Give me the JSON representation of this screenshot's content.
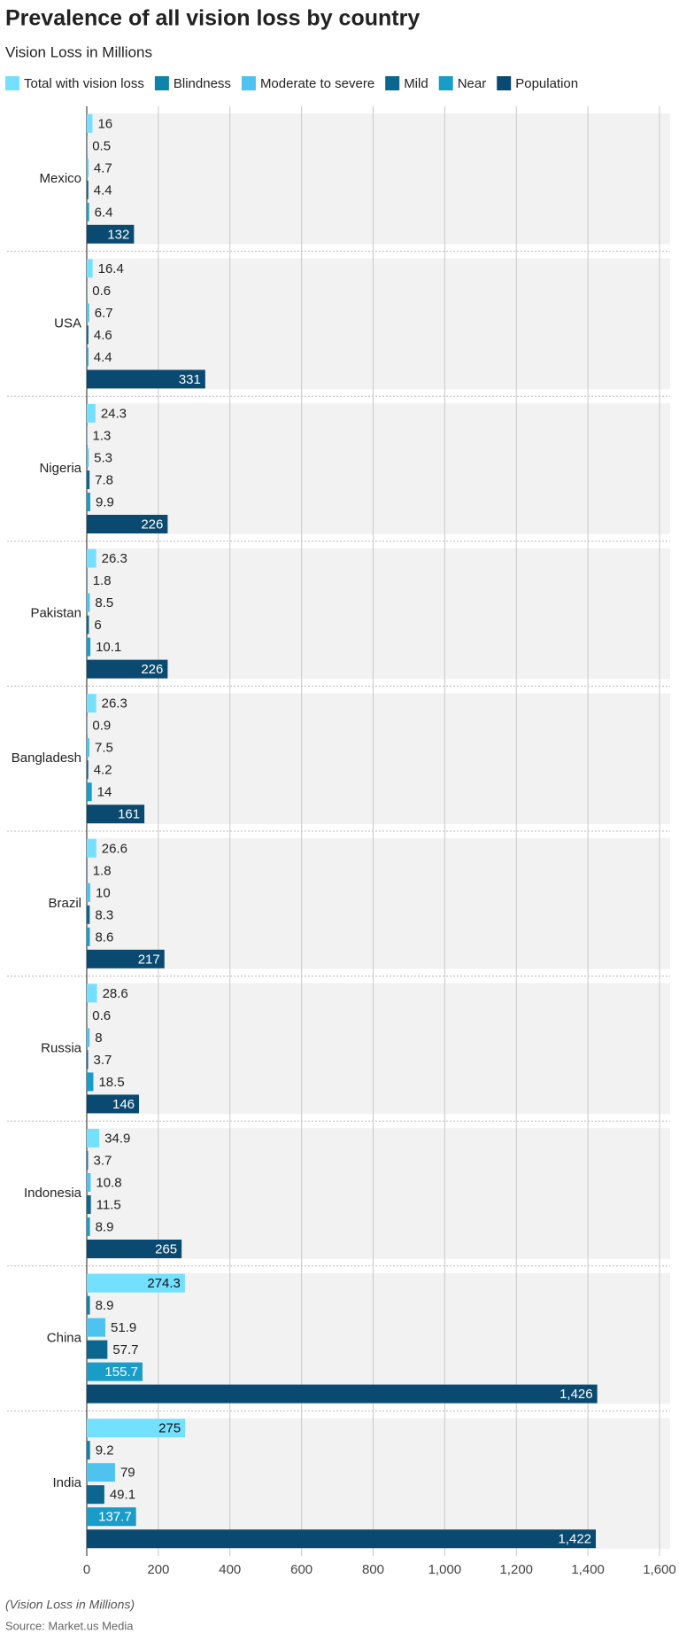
{
  "chart_data": {
    "type": "grouped-hbar",
    "title": "Prevalence of all vision loss by country",
    "subtitle": "Vision Loss in Millions",
    "footnote": "(Vision Loss in Millions)",
    "source": "Source: Market.us Media",
    "categories": [
      "Mexico",
      "USA",
      "Nigeria",
      "Pakistan",
      "Bangladesh",
      "Brazil",
      "Russia",
      "Indonesia",
      "China",
      "India"
    ],
    "series": [
      {
        "name": "Total with vision loss",
        "color": "#74e0ff",
        "values": [
          16,
          16.4,
          24.3,
          26.3,
          26.3,
          26.6,
          28.6,
          34.9,
          274.3,
          275
        ]
      },
      {
        "name": "Blindness",
        "color": "#0e84ac",
        "values": [
          0.5,
          0.6,
          1.3,
          1.8,
          0.9,
          1.8,
          0.6,
          3.7,
          8.9,
          9.2
        ]
      },
      {
        "name": "Moderate to severe",
        "color": "#4ec3f0",
        "values": [
          4.7,
          6.7,
          5.3,
          8.5,
          7.5,
          10,
          8,
          10.8,
          51.9,
          79
        ]
      },
      {
        "name": "Mild",
        "color": "#0b6690",
        "values": [
          4.4,
          4.6,
          7.8,
          6,
          4.2,
          8.3,
          3.7,
          11.5,
          57.7,
          49.1
        ]
      },
      {
        "name": "Near",
        "color": "#1a9cc9",
        "values": [
          6.4,
          4.4,
          9.9,
          10.1,
          14,
          8.6,
          18.5,
          8.9,
          155.7,
          137.7
        ]
      },
      {
        "name": "Population",
        "color": "#0a4a70",
        "values": [
          132,
          331,
          226,
          226,
          161,
          217,
          146,
          265,
          1426,
          1422
        ],
        "value_labels": [
          "132",
          "331",
          "226",
          "226",
          "161",
          "217",
          "146",
          "265",
          "1,426",
          "1,422"
        ]
      }
    ],
    "xlim": [
      0,
      1600
    ],
    "xticks": [
      0,
      200,
      400,
      600,
      800,
      {
        "value": 1000,
        "label": "1,000"
      },
      {
        "value": 1200,
        "label": "1,200"
      },
      {
        "value": 1400,
        "label": "1,400"
      },
      {
        "value": 1600,
        "label": "1,600"
      }
    ],
    "grid": true
  }
}
